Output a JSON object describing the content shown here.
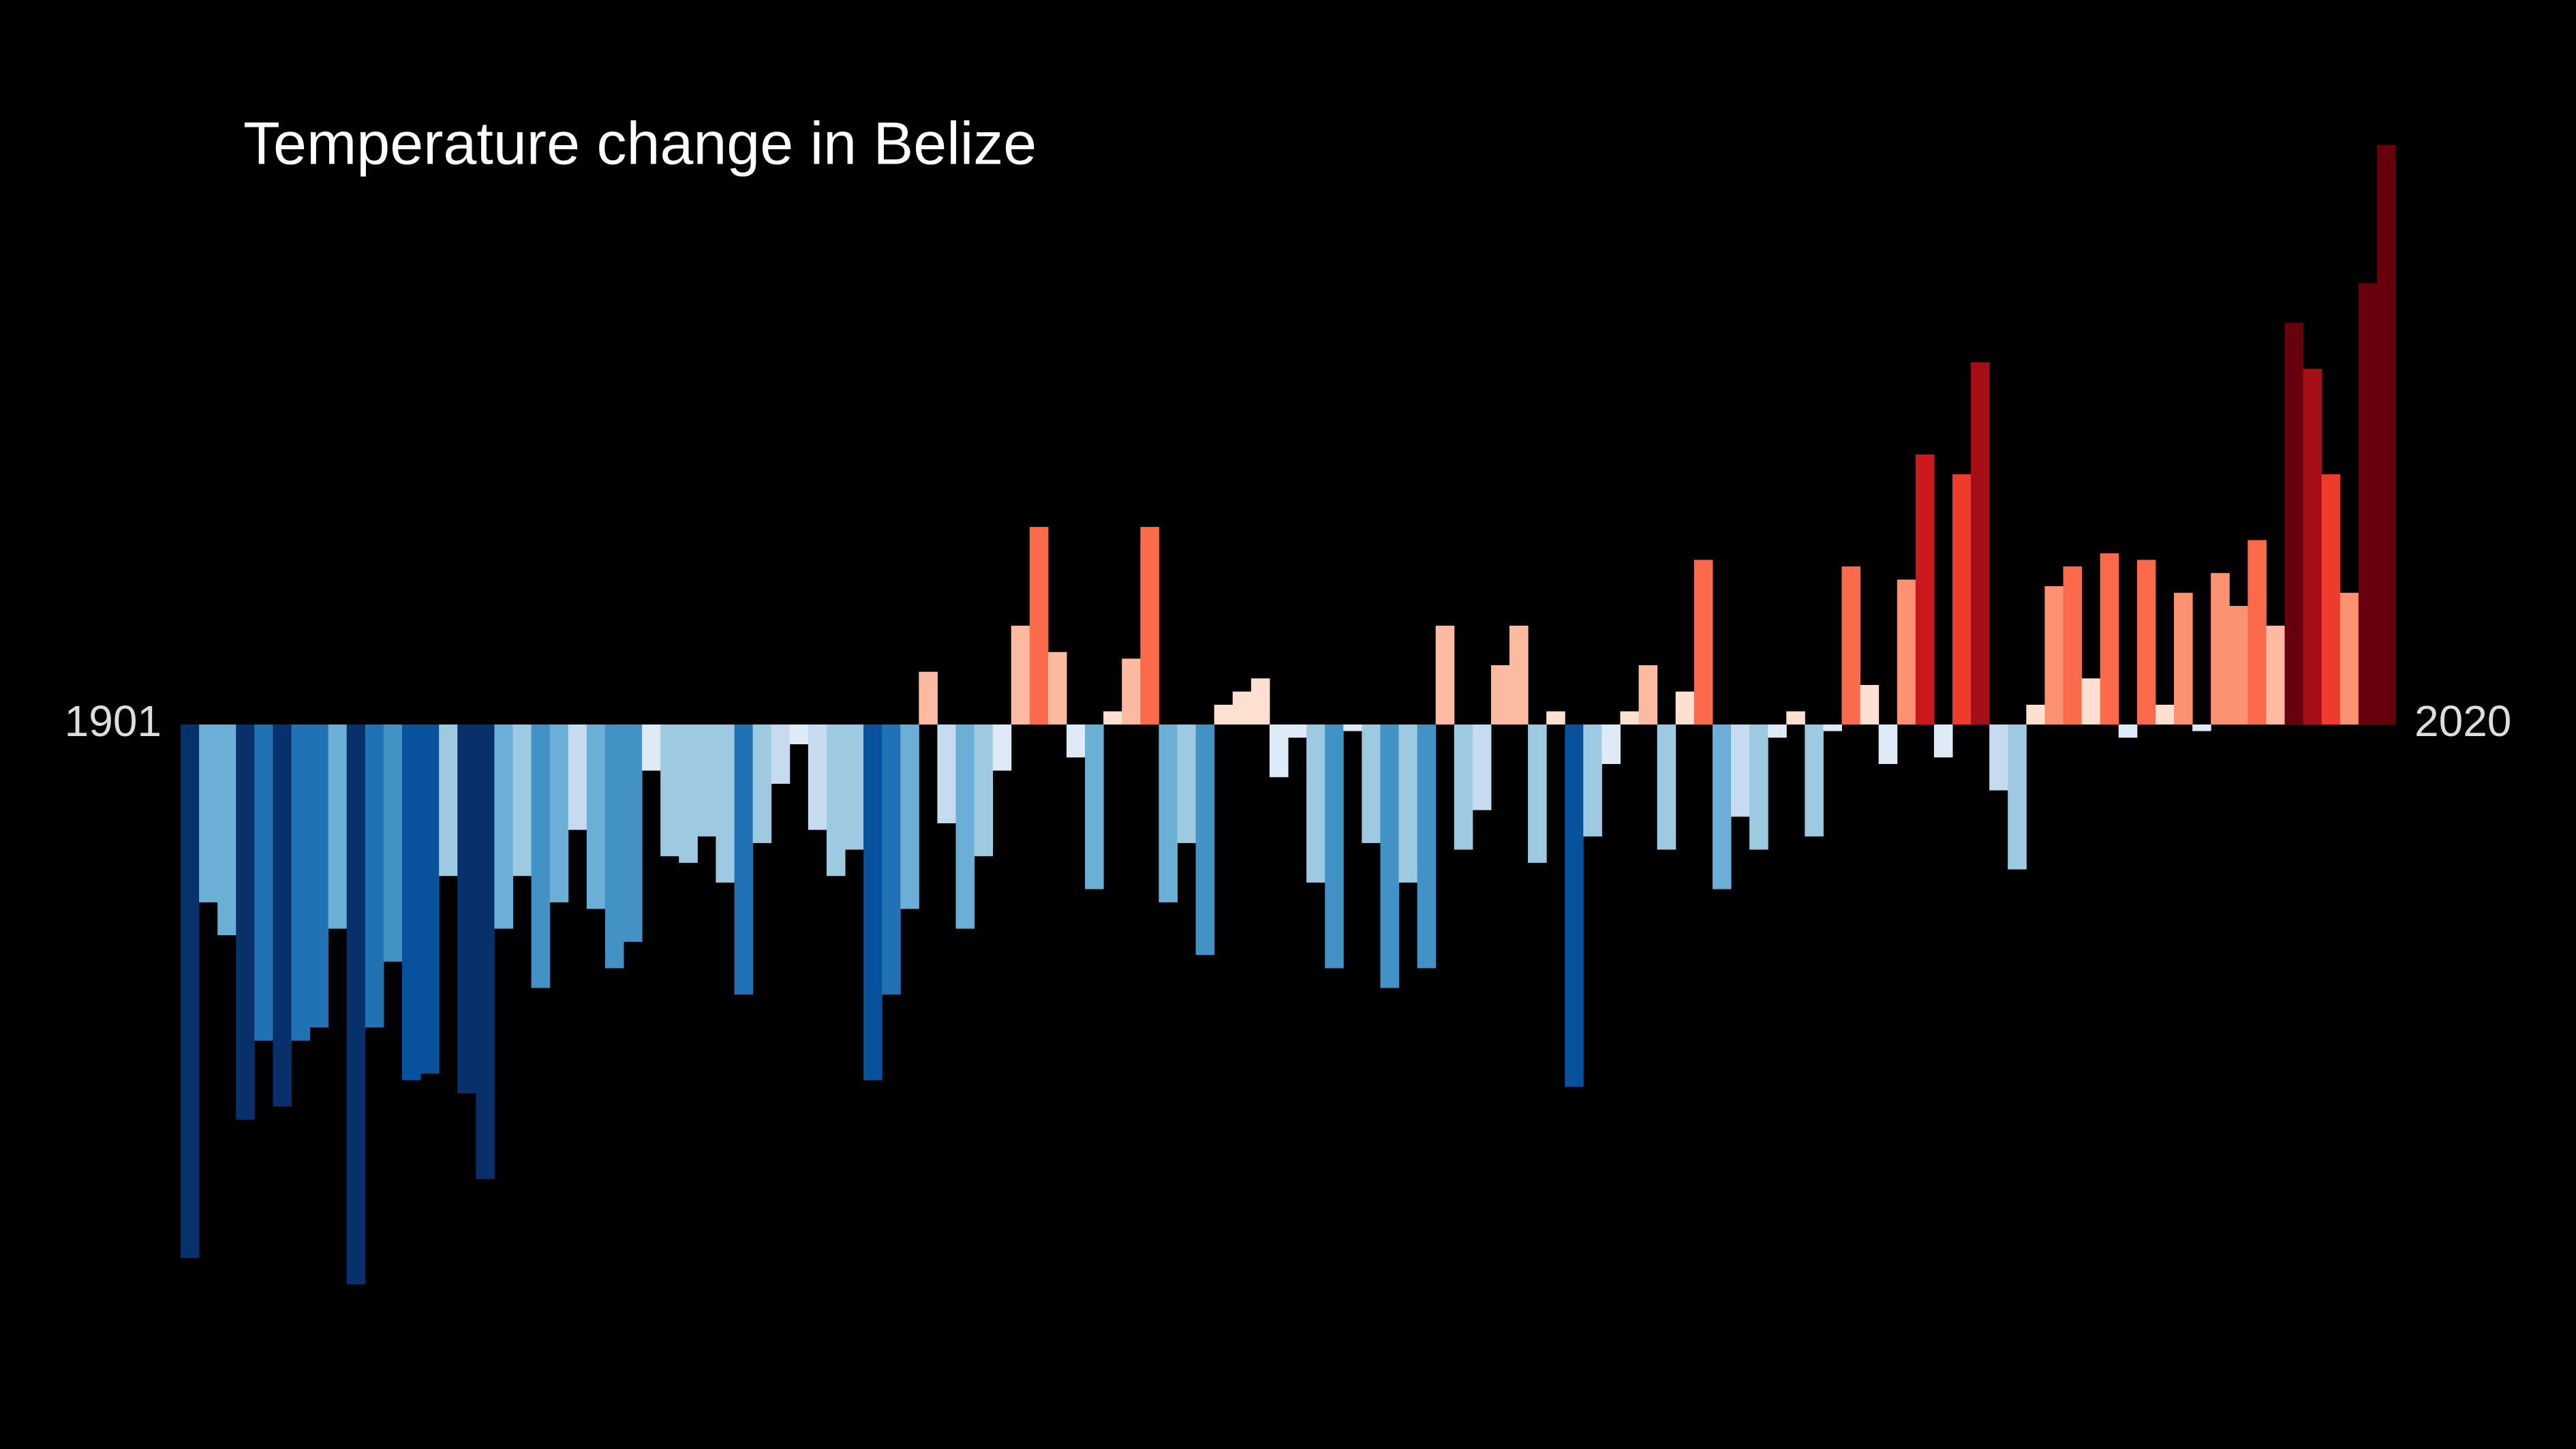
{
  "chart_data": {
    "type": "bar",
    "title": "Temperature change in Belize",
    "categories": [
      "1901",
      null,
      null,
      null,
      null,
      null,
      null,
      null,
      null,
      null,
      null,
      null,
      null,
      null,
      null,
      null,
      null,
      null,
      null,
      null,
      null,
      null,
      null,
      null,
      null,
      null,
      null,
      null,
      null,
      null,
      null,
      null,
      null,
      null,
      null,
      null,
      null,
      null,
      null,
      null,
      null,
      null,
      null,
      null,
      null,
      null,
      null,
      null,
      null,
      null,
      null,
      null,
      null,
      null,
      null,
      null,
      null,
      null,
      null,
      null,
      null,
      null,
      null,
      null,
      null,
      null,
      null,
      null,
      null,
      null,
      null,
      null,
      null,
      null,
      null,
      null,
      null,
      null,
      null,
      null,
      null,
      null,
      null,
      null,
      null,
      null,
      null,
      null,
      null,
      null,
      null,
      null,
      null,
      null,
      null,
      null,
      null,
      null,
      null,
      null,
      null,
      null,
      null,
      null,
      null,
      null,
      null,
      null,
      null,
      null,
      null,
      null,
      null,
      null,
      null,
      null,
      null,
      null,
      null,
      "2020"
    ],
    "values": [
      -0.81,
      -0.27,
      -0.32,
      -0.6,
      -0.48,
      -0.58,
      -0.48,
      -0.46,
      -0.31,
      -0.85,
      -0.46,
      -0.36,
      -0.54,
      -0.53,
      -0.23,
      -0.56,
      -0.69,
      -0.31,
      -0.23,
      -0.4,
      -0.27,
      -0.16,
      -0.28,
      -0.37,
      -0.33,
      -0.07,
      -0.2,
      -0.21,
      -0.17,
      -0.24,
      -0.41,
      -0.18,
      -0.09,
      -0.03,
      -0.16,
      -0.23,
      -0.19,
      -0.54,
      -0.41,
      -0.28,
      0.08,
      -0.15,
      -0.31,
      -0.2,
      -0.07,
      0.15,
      0.3,
      0.11,
      -0.05,
      -0.25,
      0.02,
      0.1,
      0.3,
      -0.27,
      -0.18,
      -0.35,
      0.03,
      0.05,
      0.07,
      -0.08,
      -0.02,
      -0.24,
      -0.37,
      -0.01,
      -0.18,
      -0.4,
      -0.24,
      -0.37,
      0.15,
      -0.19,
      -0.13,
      0.09,
      0.15,
      -0.21,
      0.02,
      -0.55,
      -0.17,
      -0.06,
      0.02,
      0.09,
      -0.19,
      0.05,
      0.25,
      -0.25,
      -0.14,
      -0.19,
      -0.02,
      0.02,
      -0.17,
      -0.01,
      0.24,
      0.06,
      -0.06,
      0.22,
      0.41,
      -0.05,
      0.38,
      0.55,
      -0.1,
      -0.22,
      0.03,
      0.21,
      0.24,
      0.07,
      0.26,
      -0.02,
      0.25,
      0.03,
      0.2,
      -0.01,
      0.23,
      0.18,
      0.28,
      0.15,
      0.61,
      0.54,
      0.38,
      0.2,
      0.67,
      0.88
    ],
    "ylim": [
      -1.1,
      1.1
    ],
    "colormap": [
      "#08306b",
      "#08519c",
      "#2171b5",
      "#4292c6",
      "#6baed6",
      "#9ecae1",
      "#c6dbef",
      "#deebf7",
      "#fee0d2",
      "#fcbba1",
      "#fc9272",
      "#fb6a4a",
      "#ef3b2c",
      "#cb181d",
      "#a50f15",
      "#67000d"
    ],
    "color_range": [
      -0.64,
      0.64
    ]
  }
}
